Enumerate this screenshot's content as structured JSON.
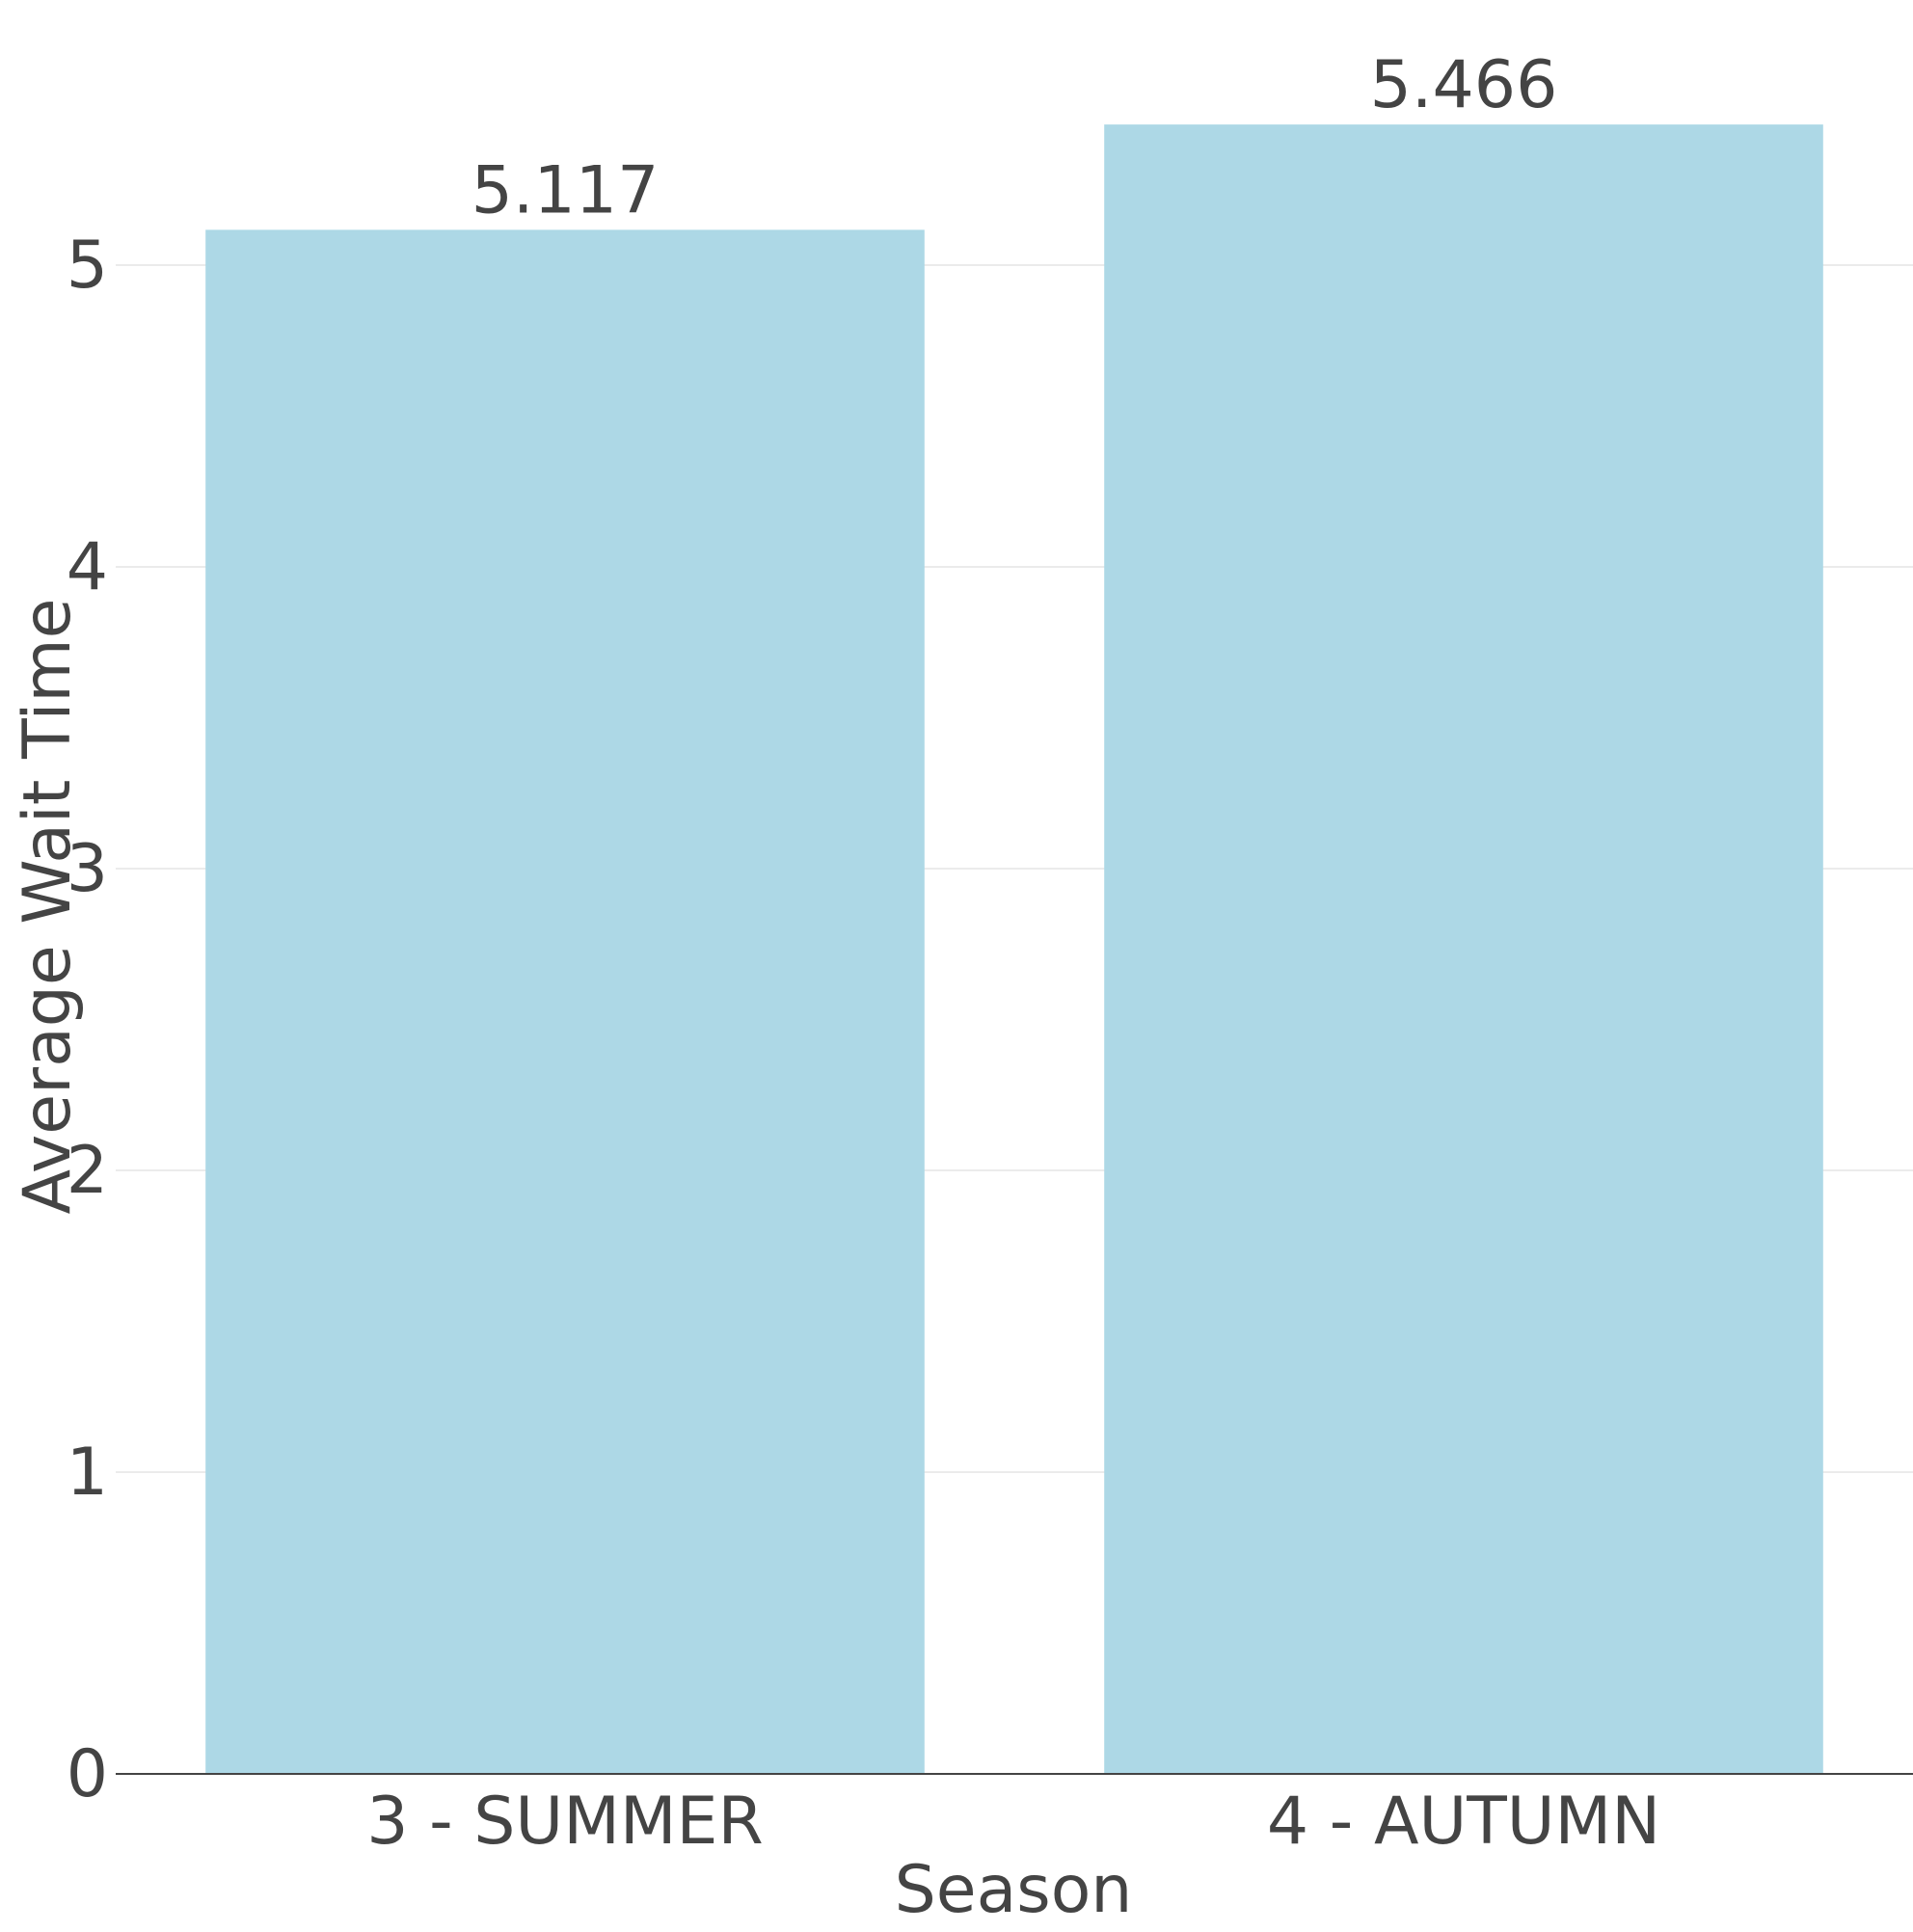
{
  "chart_data": {
    "type": "bar",
    "categories": [
      "3 - SUMMER",
      "4 - AUTUMN"
    ],
    "values": [
      5.117,
      5.466
    ],
    "data_labels": [
      "5.117",
      "5.466"
    ],
    "title": "",
    "xlabel": "Season",
    "ylabel": "Average Wait Time",
    "ylim": [
      0,
      5.7
    ],
    "yticks": [
      0,
      1,
      2,
      3,
      4,
      5
    ],
    "ytick_labels": [
      "0",
      "1",
      "2",
      "3",
      "4",
      "5"
    ],
    "grid": true,
    "legend": "none",
    "colors": {
      "bar": "#add8e6",
      "text": "#444444",
      "grid": "#ebebeb",
      "axis": "#444444",
      "background": "#ffffff"
    }
  }
}
